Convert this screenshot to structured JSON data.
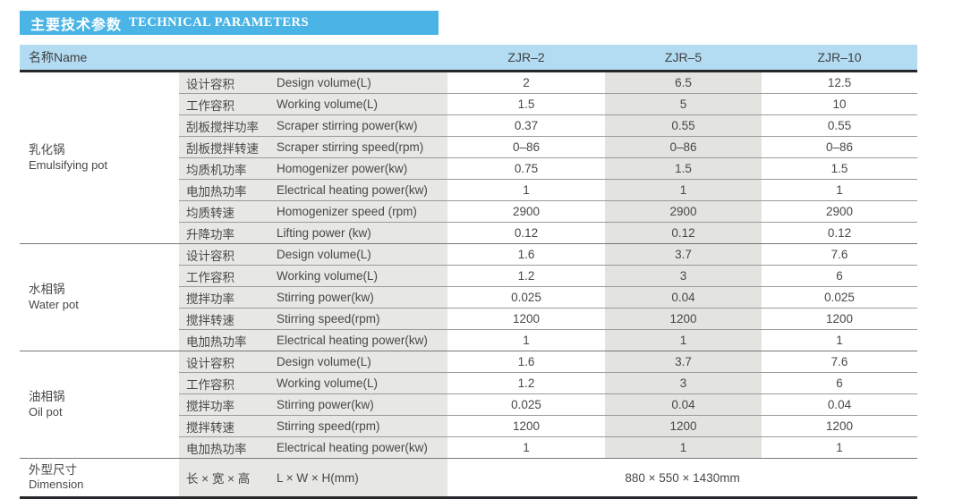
{
  "header": {
    "title_cn": "主要技术参数",
    "title_en": "TECHNICAL PARAMETERS"
  },
  "table": {
    "name_header": "名称Name",
    "columns": [
      "ZJR–2",
      "ZJR–5",
      "ZJR–10"
    ],
    "sections": [
      {
        "group_cn": "乳化锅",
        "group_en": "Emulsifying pot",
        "rows": [
          {
            "cn": "设计容积",
            "en": "Design volume(L)",
            "v": [
              "2",
              "6.5",
              "12.5"
            ]
          },
          {
            "cn": "工作容积",
            "en": "Working volume(L)",
            "v": [
              "1.5",
              "5",
              "10"
            ]
          },
          {
            "cn": "刮板搅拌功率",
            "en": "Scraper stirring power(kw)",
            "v": [
              "0.37",
              "0.55",
              "0.55"
            ]
          },
          {
            "cn": "刮板搅拌转速",
            "en": "Scraper stirring speed(rpm)",
            "v": [
              "0–86",
              "0–86",
              "0–86"
            ]
          },
          {
            "cn": "均质机功率",
            "en": "Homogenizer power(kw)",
            "v": [
              "0.75",
              "1.5",
              "1.5"
            ]
          },
          {
            "cn": "电加热功率",
            "en": "Electrical heating power(kw)",
            "v": [
              "1",
              "1",
              "1"
            ]
          },
          {
            "cn": "均质转速",
            "en": "Homogenizer speed (rpm)",
            "v": [
              "2900",
              "2900",
              "2900"
            ]
          },
          {
            "cn": "升降功率",
            "en": "Lifting power (kw)",
            "v": [
              "0.12",
              "0.12",
              "0.12"
            ]
          }
        ]
      },
      {
        "group_cn": "水相锅",
        "group_en": "Water pot",
        "rows": [
          {
            "cn": "设计容积",
            "en": "Design volume(L)",
            "v": [
              "1.6",
              "3.7",
              "7.6"
            ]
          },
          {
            "cn": "工作容积",
            "en": "Working volume(L)",
            "v": [
              "1.2",
              "3",
              "6"
            ]
          },
          {
            "cn": "搅拌功率",
            "en": "Stirring power(kw)",
            "v": [
              "0.025",
              "0.04",
              "0.025"
            ]
          },
          {
            "cn": "搅拌转速",
            "en": "Stirring speed(rpm)",
            "v": [
              "1200",
              "1200",
              "1200"
            ]
          },
          {
            "cn": "电加热功率",
            "en": "Electrical heating power(kw)",
            "v": [
              "1",
              "1",
              "1"
            ]
          }
        ]
      },
      {
        "group_cn": "油相锅",
        "group_en": "Oil pot",
        "rows": [
          {
            "cn": "设计容积",
            "en": "Design volume(L)",
            "v": [
              "1.6",
              "3.7",
              "7.6"
            ]
          },
          {
            "cn": "工作容积",
            "en": "Working volume(L)",
            "v": [
              "1.2",
              "3",
              "6"
            ]
          },
          {
            "cn": "搅拌功率",
            "en": "Stirring power(kw)",
            "v": [
              "0.025",
              "0.04",
              "0.04"
            ]
          },
          {
            "cn": "搅拌转速",
            "en": "Stirring speed(rpm)",
            "v": [
              "1200",
              "1200",
              "1200"
            ]
          },
          {
            "cn": "电加热功率",
            "en": "Electrical heating power(kw)",
            "v": [
              "1",
              "1",
              "1"
            ]
          }
        ]
      }
    ],
    "dimension": {
      "group_cn": "外型尺寸",
      "group_en": "Dimension",
      "cn": "长 × 宽 × 高",
      "en": "L × W × H(mm)",
      "value": "880 × 550 × 1430mm"
    }
  },
  "colors": {
    "title_bg": "#49b4e5",
    "header_bg": "#b3dcf2",
    "label_shade": "#e7e7e3",
    "column_shade": "#e3e3df"
  }
}
